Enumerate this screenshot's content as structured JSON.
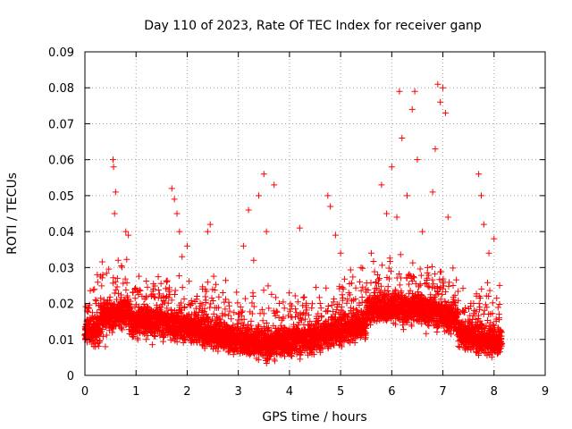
{
  "chart_data": {
    "type": "scatter",
    "title": "Day 110 of 2023, Rate Of TEC Index for receiver ganp",
    "xlabel": "GPS time / hours",
    "ylabel": "ROTI / TECUs",
    "xlim": [
      0,
      9
    ],
    "ylim": [
      0,
      0.09
    ],
    "xticks": [
      "0",
      "1",
      "2",
      "3",
      "4",
      "5",
      "6",
      "7",
      "8",
      "9"
    ],
    "yticks": [
      "0",
      "0.01",
      "0.02",
      "0.03",
      "0.04",
      "0.05",
      "0.06",
      "0.07",
      "0.08",
      "0.09"
    ],
    "grid": true,
    "legend": "none",
    "marker": "plus",
    "color": "#ff0000",
    "x_range_of_data": [
      0,
      8.15
    ],
    "series": [
      {
        "points": [
          [
            0.05,
            0.012
          ],
          [
            0.1,
            0.016
          ],
          [
            0.2,
            0.009
          ],
          [
            0.3,
            0.013
          ],
          [
            0.35,
            0.028
          ],
          [
            0.4,
            0.008
          ],
          [
            0.45,
            0.018
          ],
          [
            0.55,
            0.06
          ],
          [
            0.56,
            0.058
          ],
          [
            0.6,
            0.051
          ],
          [
            0.58,
            0.045
          ],
          [
            0.65,
            0.032
          ],
          [
            0.7,
            0.02
          ],
          [
            0.8,
            0.04
          ],
          [
            0.85,
            0.039
          ],
          [
            0.9,
            0.015
          ],
          [
            1.0,
            0.012
          ],
          [
            1.1,
            0.018
          ],
          [
            1.2,
            0.01
          ],
          [
            1.3,
            0.022
          ],
          [
            1.4,
            0.014
          ],
          [
            1.5,
            0.016
          ],
          [
            1.6,
            0.026
          ],
          [
            1.7,
            0.052
          ],
          [
            1.75,
            0.049
          ],
          [
            1.8,
            0.045
          ],
          [
            1.85,
            0.04
          ],
          [
            1.9,
            0.033
          ],
          [
            2.0,
            0.036
          ],
          [
            2.1,
            0.02
          ],
          [
            2.2,
            0.014
          ],
          [
            2.3,
            0.018
          ],
          [
            2.4,
            0.04
          ],
          [
            2.45,
            0.042
          ],
          [
            2.5,
            0.013
          ],
          [
            2.6,
            0.016
          ],
          [
            2.8,
            0.011
          ],
          [
            3.0,
            0.017
          ],
          [
            3.1,
            0.036
          ],
          [
            3.2,
            0.046
          ],
          [
            3.3,
            0.032
          ],
          [
            3.4,
            0.05
          ],
          [
            3.5,
            0.056
          ],
          [
            3.55,
            0.04
          ],
          [
            3.7,
            0.053
          ],
          [
            3.8,
            0.02
          ],
          [
            4.0,
            0.013
          ],
          [
            4.2,
            0.041
          ],
          [
            4.4,
            0.015
          ],
          [
            4.6,
            0.02
          ],
          [
            4.75,
            0.05
          ],
          [
            4.8,
            0.047
          ],
          [
            4.9,
            0.039
          ],
          [
            5.0,
            0.034
          ],
          [
            5.2,
            0.018
          ],
          [
            5.4,
            0.03
          ],
          [
            5.5,
            0.014
          ],
          [
            5.6,
            0.034
          ],
          [
            5.8,
            0.053
          ],
          [
            5.9,
            0.045
          ],
          [
            6.0,
            0.058
          ],
          [
            6.1,
            0.044
          ],
          [
            6.15,
            0.079
          ],
          [
            6.2,
            0.066
          ],
          [
            6.3,
            0.05
          ],
          [
            6.4,
            0.074
          ],
          [
            6.45,
            0.079
          ],
          [
            6.5,
            0.06
          ],
          [
            6.6,
            0.04
          ],
          [
            6.7,
            0.03
          ],
          [
            6.8,
            0.051
          ],
          [
            6.85,
            0.063
          ],
          [
            6.9,
            0.081
          ],
          [
            6.95,
            0.076
          ],
          [
            7.0,
            0.08
          ],
          [
            7.05,
            0.073
          ],
          [
            7.1,
            0.044
          ],
          [
            7.2,
            0.025
          ],
          [
            7.4,
            0.018
          ],
          [
            7.6,
            0.02
          ],
          [
            7.7,
            0.056
          ],
          [
            7.75,
            0.05
          ],
          [
            7.8,
            0.042
          ],
          [
            7.9,
            0.034
          ],
          [
            8.0,
            0.038
          ],
          [
            8.1,
            0.016
          ],
          [
            8.15,
            0.012
          ]
        ]
      }
    ]
  }
}
